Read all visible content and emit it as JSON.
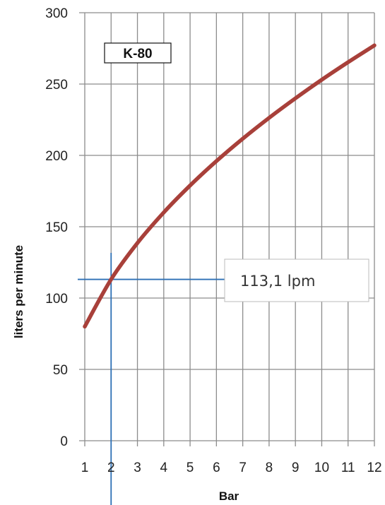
{
  "chart_data": {
    "type": "line",
    "model_label": "K-80",
    "xlabel": "Bar",
    "ylabel": "liters per minute",
    "xlim": [
      1,
      12
    ],
    "ylim": [
      0,
      300
    ],
    "x_ticks": [
      1,
      2,
      3,
      4,
      5,
      6,
      7,
      8,
      9,
      10,
      11,
      12
    ],
    "y_ticks": [
      0,
      50,
      100,
      150,
      200,
      250,
      300
    ],
    "grid": true,
    "series": [
      {
        "color": "#a8403a",
        "x": [
          1,
          2,
          3,
          4,
          5,
          6,
          7,
          8,
          9,
          10,
          11,
          12
        ],
        "y": [
          80,
          113.1,
          138.6,
          160,
          178.9,
          196,
          211.7,
          226.3,
          240,
          253,
          265.3,
          277.1
        ]
      }
    ],
    "highlight": {
      "x": 2,
      "y": 113.1,
      "label": "113,1 lpm",
      "color": "#2c6fb5"
    }
  }
}
